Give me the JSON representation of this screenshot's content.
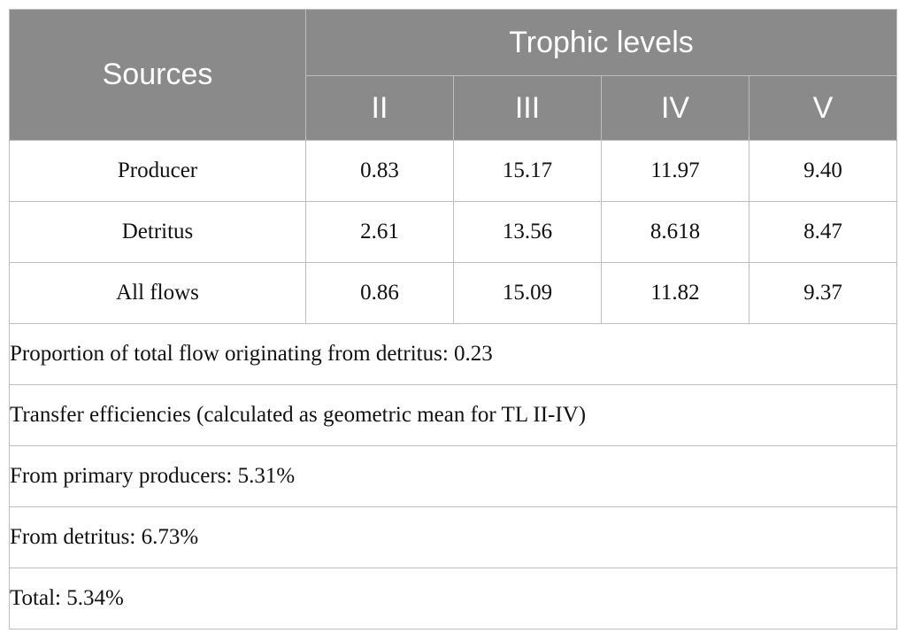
{
  "header": {
    "sources": "Sources",
    "trophic_levels": "Trophic levels",
    "levels": [
      "II",
      "III",
      "IV",
      "V"
    ]
  },
  "rows": [
    {
      "source": "Producer",
      "values": [
        "0.83",
        "15.17",
        "11.97",
        "9.40"
      ]
    },
    {
      "source": "Detritus",
      "values": [
        "2.61",
        "13.56",
        "8.618",
        "8.47"
      ]
    },
    {
      "source": "All flows",
      "values": [
        "0.86",
        "15.09",
        "11.82",
        "9.37"
      ]
    }
  ],
  "notes": [
    "Proportion of total flow originating from detritus: 0.23",
    "Transfer efficiencies (calculated as geometric mean for TL II-IV)",
    "From primary producers: 5.31%",
    "From detritus: 6.73%",
    "Total: 5.34%"
  ]
}
